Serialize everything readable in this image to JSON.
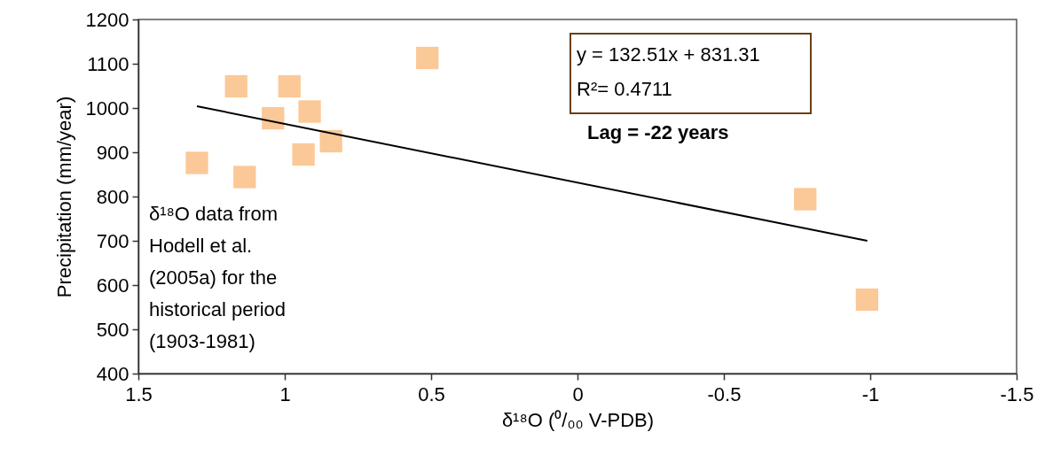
{
  "chart_data": {
    "type": "scatter",
    "xlabel": "δ¹⁸O (⁰/₀₀ V-PDB)",
    "ylabel": "Precipitation (mm/year)",
    "xlim": [
      1.5,
      -1.5
    ],
    "xticks": [
      1.5,
      1,
      0.5,
      0,
      -0.5,
      -1,
      -1.5
    ],
    "ylim": [
      400,
      1200
    ],
    "yticks": [
      400,
      500,
      600,
      700,
      800,
      900,
      1000,
      1100,
      1200
    ],
    "grid": false,
    "series": [
      {
        "marker": "square",
        "color": "#fbc898",
        "x": [
          1.3,
          1.166,
          1.137,
          1.04,
          0.984,
          0.915,
          0.936,
          0.842,
          0.513,
          -0.778,
          -0.989
        ],
        "values": [
          876,
          1049,
          844,
          977,
          1049,
          992,
          895,
          925,
          1113,
          794,
          567
        ]
      },
      {
        "type": "line",
        "color": "#000000",
        "x": [
          1.3,
          -0.99
        ],
        "values": [
          1004,
          700
        ]
      }
    ],
    "annotations": [
      "y = 132.51x + 831.31",
      "R²= 0.4711",
      "Lag = -22 years",
      "δ¹⁸O data from Hodell et al. (2005a) for the historical period (1903-1981)"
    ]
  }
}
